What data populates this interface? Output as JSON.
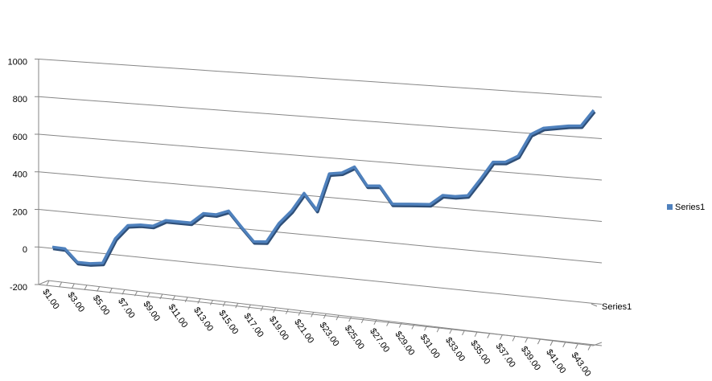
{
  "chart_data": {
    "type": "line",
    "categories": [
      "$1.00",
      null,
      "$3.00",
      null,
      "$5.00",
      null,
      "$7.00",
      null,
      "$9.00",
      null,
      "$11.00",
      null,
      "$13.00",
      null,
      "$15.00",
      null,
      "$17.00",
      null,
      "$19.00",
      null,
      "$21.00",
      null,
      "$23.00",
      null,
      "$25.00",
      null,
      "$27.00",
      null,
      "$29.00",
      null,
      "$31.00",
      null,
      "$33.00",
      null,
      "$35.00",
      null,
      "$37.00",
      null,
      "$39.00",
      null,
      "$41.00",
      null,
      "$43.00",
      null
    ],
    "series": [
      {
        "name": "Series1",
        "color": "#4f81bd",
        "values": [
          7,
          5,
          -60,
          -60,
          -50,
          85,
          160,
          170,
          170,
          205,
          205,
          205,
          260,
          260,
          285,
          210,
          140,
          145,
          245,
          315,
          410,
          330,
          520,
          530,
          565,
          475,
          480,
          395,
          400,
          405,
          410,
          460,
          460,
          470,
          555,
          645,
          650,
          685,
          795,
          830,
          840,
          850,
          855,
          935
        ]
      }
    ],
    "ylim": [
      -200,
      1000
    ],
    "yticks": [
      -200,
      0,
      200,
      400,
      600,
      800,
      1000
    ],
    "grid": true,
    "legend": "right"
  }
}
